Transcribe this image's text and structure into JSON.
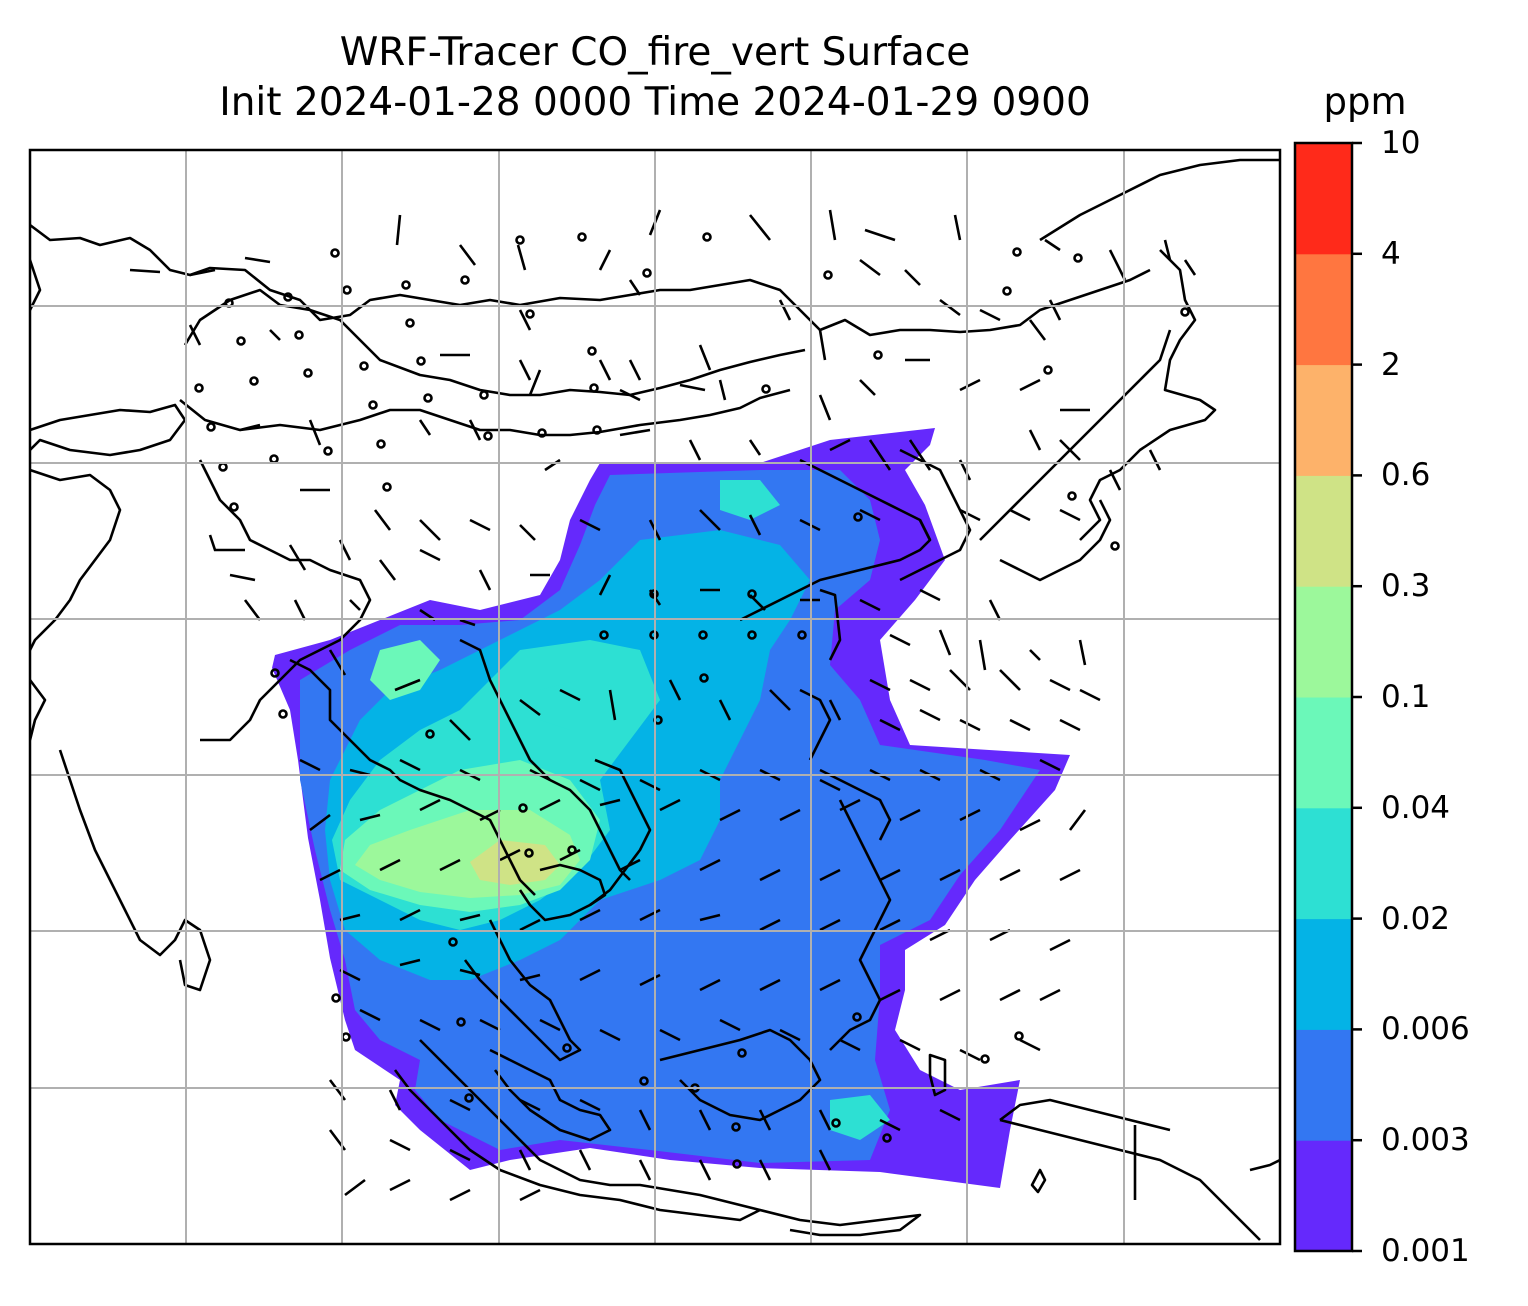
{
  "title": {
    "line1": "WRF-Tracer CO_fire_vert Surface",
    "line2": "Init 2024-01-28 0000 Time 2024-01-29 0900"
  },
  "colorbar": {
    "unit": "ppm",
    "levels": [
      "0.001",
      "0.003",
      "0.006",
      "0.02",
      "0.04",
      "0.1",
      "0.3",
      "0.6",
      "2",
      "4",
      "10"
    ],
    "colors": [
      "#6529fc",
      "#3377f2",
      "#04b3e6",
      "#2de0d3",
      "#6bf8b9",
      "#9cf89b",
      "#cfe386",
      "#fdb26a",
      "#ff7640",
      "#ff2a1a"
    ]
  },
  "map": {
    "background": "#ffffff",
    "gridline_color": "#b0b0b0",
    "coastline_color": "#000000",
    "wind_barb_color": "#000000"
  }
}
